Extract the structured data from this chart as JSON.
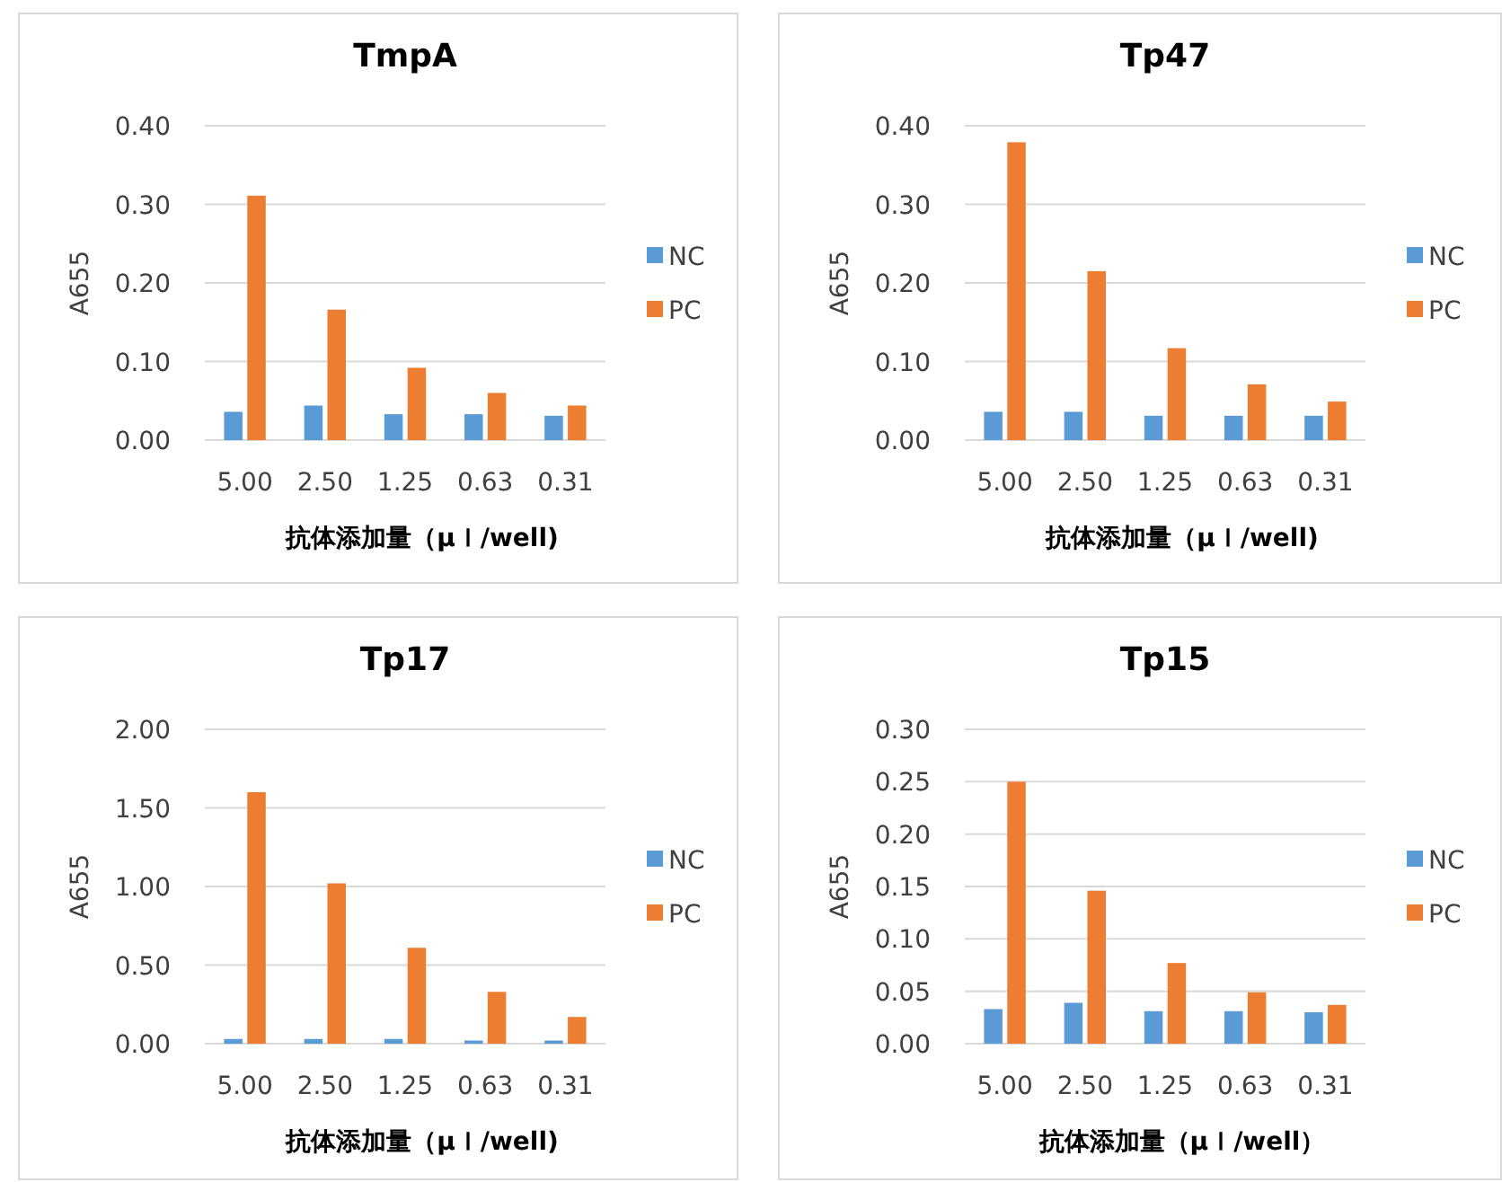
{
  "chart_data": [
    {
      "type": "bar",
      "title": "TmpA",
      "xlabel": "抗体添加量（μｌ/well)",
      "ylabel": "A655",
      "categories": [
        "5.00",
        "2.50",
        "1.25",
        "0.63",
        "0.31"
      ],
      "series": [
        {
          "name": "NC",
          "color": "#5b9bd5",
          "values": [
            0.036,
            0.044,
            0.033,
            0.033,
            0.031
          ]
        },
        {
          "name": "PC",
          "color": "#ed7d31",
          "values": [
            0.311,
            0.166,
            0.092,
            0.06,
            0.044
          ]
        }
      ],
      "ylim": [
        0,
        0.4
      ],
      "yticks": [
        {
          "value": 0,
          "label": "0.00"
        },
        {
          "value": 0.1,
          "label": "0.10"
        },
        {
          "value": 0.2,
          "label": "0.20"
        },
        {
          "value": 0.3,
          "label": "0.30"
        },
        {
          "value": 0.4,
          "label": "0.40"
        }
      ],
      "grid": "y",
      "legend": "right"
    },
    {
      "type": "bar",
      "title": "Tp47",
      "xlabel": "抗体添加量（μｌ/well)",
      "ylabel": "A655",
      "categories": [
        "5.00",
        "2.50",
        "1.25",
        "0.63",
        "0.31"
      ],
      "series": [
        {
          "name": "NC",
          "color": "#5b9bd5",
          "values": [
            0.036,
            0.036,
            0.031,
            0.031,
            0.031
          ]
        },
        {
          "name": "PC",
          "color": "#ed7d31",
          "values": [
            0.379,
            0.215,
            0.117,
            0.071,
            0.049
          ]
        }
      ],
      "ylim": [
        0,
        0.4
      ],
      "yticks": [
        {
          "value": 0,
          "label": "0.00"
        },
        {
          "value": 0.1,
          "label": "0.10"
        },
        {
          "value": 0.2,
          "label": "0.20"
        },
        {
          "value": 0.3,
          "label": "0.30"
        },
        {
          "value": 0.4,
          "label": "0.40"
        }
      ],
      "grid": "y",
      "legend": "right"
    },
    {
      "type": "bar",
      "title": "Tp17",
      "xlabel": "抗体添加量（μｌ/well)",
      "ylabel": "A655",
      "categories": [
        "5.00",
        "2.50",
        "1.25",
        "0.63",
        "0.31"
      ],
      "series": [
        {
          "name": "NC",
          "color": "#5b9bd5",
          "values": [
            0.03,
            0.03,
            0.03,
            0.02,
            0.02
          ]
        },
        {
          "name": "PC",
          "color": "#ed7d31",
          "values": [
            1.6,
            1.02,
            0.61,
            0.33,
            0.17
          ]
        }
      ],
      "ylim": [
        0,
        2
      ],
      "yticks": [
        {
          "value": 0,
          "label": "0.00"
        },
        {
          "value": 0.5,
          "label": "0.50"
        },
        {
          "value": 1,
          "label": "1.00"
        },
        {
          "value": 1.5,
          "label": "1.50"
        },
        {
          "value": 2,
          "label": "2.00"
        }
      ],
      "grid": "y",
      "legend": "right"
    },
    {
      "type": "bar",
      "title": "Tp15",
      "xlabel": "抗体添加量（μｌ/well）",
      "ylabel": "A655",
      "categories": [
        "5.00",
        "2.50",
        "1.25",
        "0.63",
        "0.31"
      ],
      "series": [
        {
          "name": "NC",
          "color": "#5b9bd5",
          "values": [
            0.033,
            0.039,
            0.031,
            0.031,
            0.03
          ]
        },
        {
          "name": "PC",
          "color": "#ed7d31",
          "values": [
            0.25,
            0.146,
            0.077,
            0.049,
            0.037
          ]
        }
      ],
      "ylim": [
        0,
        0.3
      ],
      "yticks": [
        {
          "value": 0,
          "label": "0.00"
        },
        {
          "value": 0.05,
          "label": "0.05"
        },
        {
          "value": 0.1,
          "label": "0.10"
        },
        {
          "value": 0.15,
          "label": "0.15"
        },
        {
          "value": 0.2,
          "label": "0.20"
        },
        {
          "value": 0.25,
          "label": "0.25"
        },
        {
          "value": 0.3,
          "label": "0.30"
        }
      ],
      "grid": "y",
      "legend": "right"
    }
  ]
}
